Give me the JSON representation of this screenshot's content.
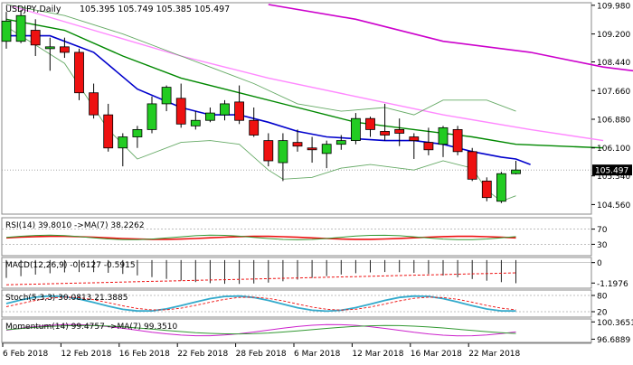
{
  "chart_data": {
    "type": "candlestick",
    "symbol": "USDJPY,Daily",
    "ohlc_text": "105.395 105.749 105.385 105.497",
    "last_price_label": "105.497",
    "main_ylim": [
      104.3,
      110.05
    ],
    "main_ticks": [
      "109.980",
      "109.200",
      "108.440",
      "107.660",
      "106.880",
      "106.100",
      "105.340",
      "104.560"
    ],
    "x_labels": [
      "6 Feb 2018",
      "12 Feb 2018",
      "16 Feb 2018",
      "22 Feb 2018",
      "28 Feb 2018",
      "6 Mar 2018",
      "12 Mar 2018",
      "16 Mar 2018",
      "22 Mar 2018"
    ],
    "x_label_bars": [
      0,
      4,
      8,
      12,
      16,
      20,
      24,
      28,
      32
    ],
    "candles": [
      {
        "o": 109.0,
        "h": 109.8,
        "l": 108.8,
        "c": 109.55
      },
      {
        "o": 109.0,
        "h": 109.85,
        "l": 108.95,
        "c": 109.7
      },
      {
        "o": 109.3,
        "h": 109.6,
        "l": 108.6,
        "c": 108.9
      },
      {
        "o": 108.8,
        "h": 109.1,
        "l": 108.2,
        "c": 108.85
      },
      {
        "o": 108.85,
        "h": 109.1,
        "l": 108.55,
        "c": 108.7
      },
      {
        "o": 108.7,
        "h": 108.8,
        "l": 107.4,
        "c": 107.6
      },
      {
        "o": 107.6,
        "h": 107.85,
        "l": 106.9,
        "c": 107.0
      },
      {
        "o": 107.0,
        "h": 107.3,
        "l": 106.0,
        "c": 106.1
      },
      {
        "o": 106.1,
        "h": 106.5,
        "l": 105.6,
        "c": 106.4
      },
      {
        "o": 106.4,
        "h": 106.7,
        "l": 106.1,
        "c": 106.6
      },
      {
        "o": 106.6,
        "h": 107.5,
        "l": 106.5,
        "c": 107.3
      },
      {
        "o": 107.3,
        "h": 107.8,
        "l": 107.1,
        "c": 107.75
      },
      {
        "o": 107.45,
        "h": 107.85,
        "l": 106.65,
        "c": 106.75
      },
      {
        "o": 106.7,
        "h": 107.1,
        "l": 106.6,
        "c": 106.85
      },
      {
        "o": 106.85,
        "h": 107.2,
        "l": 106.8,
        "c": 107.05
      },
      {
        "o": 107.0,
        "h": 107.4,
        "l": 106.85,
        "c": 107.3
      },
      {
        "o": 107.35,
        "h": 107.8,
        "l": 106.75,
        "c": 106.85
      },
      {
        "o": 106.85,
        "h": 107.2,
        "l": 106.4,
        "c": 106.45
      },
      {
        "o": 106.3,
        "h": 106.5,
        "l": 105.6,
        "c": 105.75
      },
      {
        "o": 105.7,
        "h": 106.5,
        "l": 105.2,
        "c": 106.3
      },
      {
        "o": 106.25,
        "h": 106.6,
        "l": 106.0,
        "c": 106.15
      },
      {
        "o": 106.1,
        "h": 106.4,
        "l": 105.7,
        "c": 106.05
      },
      {
        "o": 105.95,
        "h": 106.3,
        "l": 105.55,
        "c": 106.2
      },
      {
        "o": 106.2,
        "h": 106.45,
        "l": 106.05,
        "c": 106.3
      },
      {
        "o": 106.3,
        "h": 107.05,
        "l": 106.2,
        "c": 106.9
      },
      {
        "o": 106.9,
        "h": 106.95,
        "l": 106.4,
        "c": 106.6
      },
      {
        "o": 106.55,
        "h": 107.3,
        "l": 106.3,
        "c": 106.45
      },
      {
        "o": 106.6,
        "h": 106.9,
        "l": 106.15,
        "c": 106.5
      },
      {
        "o": 106.4,
        "h": 106.5,
        "l": 105.8,
        "c": 106.3
      },
      {
        "o": 106.25,
        "h": 106.65,
        "l": 105.9,
        "c": 106.05
      },
      {
        "o": 106.2,
        "h": 106.7,
        "l": 105.85,
        "c": 106.65
      },
      {
        "o": 106.6,
        "h": 106.7,
        "l": 105.9,
        "c": 106.0
      },
      {
        "o": 106.0,
        "h": 106.1,
        "l": 105.2,
        "c": 105.25
      },
      {
        "o": 105.2,
        "h": 105.3,
        "l": 104.65,
        "c": 104.75
      },
      {
        "o": 104.65,
        "h": 105.45,
        "l": 104.6,
        "c": 105.4
      },
      {
        "o": 105.4,
        "h": 105.75,
        "l": 105.38,
        "c": 105.5
      }
    ],
    "overlays": [
      {
        "color": "#cc00cc",
        "width": 1.6,
        "points": [
          [
            18,
            110.0
          ],
          [
            24,
            109.6
          ],
          [
            30,
            109.0
          ],
          [
            36,
            108.7
          ],
          [
            41,
            108.3
          ],
          [
            47,
            108.0
          ]
        ]
      },
      {
        "color": "#ff88ff",
        "width": 1.4,
        "points": [
          [
            0,
            110.0
          ],
          [
            6,
            109.3
          ],
          [
            12,
            108.6
          ],
          [
            18,
            108.0
          ],
          [
            24,
            107.5
          ],
          [
            30,
            107.0
          ],
          [
            36,
            106.6
          ],
          [
            41,
            106.3
          ]
        ]
      },
      {
        "color": "#008800",
        "width": 1.4,
        "points": [
          [
            0,
            109.6
          ],
          [
            4,
            109.3
          ],
          [
            8,
            108.6
          ],
          [
            12,
            108.0
          ],
          [
            16,
            107.6
          ],
          [
            20,
            107.2
          ],
          [
            24,
            106.8
          ],
          [
            28,
            106.6
          ],
          [
            32,
            106.4
          ],
          [
            35,
            106.2
          ],
          [
            41,
            106.1
          ]
        ]
      },
      {
        "color": "#0000cc",
        "width": 1.6,
        "points": [
          [
            0,
            109.15
          ],
          [
            3,
            109.15
          ],
          [
            6,
            108.7
          ],
          [
            9,
            107.7
          ],
          [
            12,
            107.2
          ],
          [
            14,
            107.0
          ],
          [
            16,
            107.0
          ],
          [
            18,
            106.8
          ],
          [
            20,
            106.55
          ],
          [
            22,
            106.4
          ],
          [
            24,
            106.35
          ],
          [
            26,
            106.3
          ],
          [
            28,
            106.3
          ],
          [
            30,
            106.2
          ],
          [
            32,
            106.0
          ],
          [
            34,
            105.85
          ],
          [
            35,
            105.8
          ],
          [
            36,
            105.65
          ]
        ]
      },
      {
        "color": "#66aa66",
        "width": 0.9,
        "points": [
          [
            0,
            110.0
          ],
          [
            4,
            109.7
          ],
          [
            8,
            109.2
          ],
          [
            12,
            108.6
          ],
          [
            14,
            108.3
          ],
          [
            17,
            107.85
          ],
          [
            20,
            107.3
          ],
          [
            23,
            107.1
          ],
          [
            26,
            107.2
          ],
          [
            28,
            107.0
          ],
          [
            30,
            107.4
          ],
          [
            33,
            107.4
          ],
          [
            35,
            107.1
          ]
        ]
      },
      {
        "color": "#66aa66",
        "width": 0.9,
        "points": [
          [
            0,
            109.4
          ],
          [
            4,
            108.4
          ],
          [
            7,
            106.6
          ],
          [
            9,
            105.8
          ],
          [
            12,
            106.25
          ],
          [
            14,
            106.3
          ],
          [
            16,
            106.2
          ],
          [
            18,
            105.5
          ],
          [
            19,
            105.25
          ],
          [
            21,
            105.3
          ],
          [
            23,
            105.55
          ],
          [
            25,
            105.65
          ],
          [
            28,
            105.5
          ],
          [
            30,
            105.75
          ],
          [
            32,
            105.55
          ],
          [
            33,
            104.95
          ],
          [
            34,
            104.65
          ],
          [
            35,
            104.8
          ]
        ]
      }
    ],
    "panels": [
      {
        "label": "RSI(14) 39.8010  ->MA(7) 38.2262",
        "ticks": [
          "70",
          "30"
        ],
        "tick_values": [
          70,
          30
        ],
        "ylim": [
          0,
          100
        ]
      },
      {
        "label": "MACD(12,26,9) -0.6127 -0.5915",
        "ticks": [
          "0",
          "-1.1976"
        ],
        "tick_values": [
          0,
          -1.1976
        ],
        "ylim": [
          -1.5,
          0.3
        ]
      },
      {
        "label": "Stoch(5,3,3) 30.0813 21.3885",
        "ticks": [
          "80",
          "20"
        ],
        "tick_values": [
          80,
          20
        ],
        "ylim": [
          0,
          100
        ]
      },
      {
        "label": "Momentum(14) 99.4757  ->MA(7) 99.3510",
        "ticks": [
          "100.3651",
          "96.6889"
        ],
        "tick_values": [
          100.3651,
          96.6889
        ],
        "ylim": [
          96.0,
          101.0
        ]
      }
    ]
  }
}
